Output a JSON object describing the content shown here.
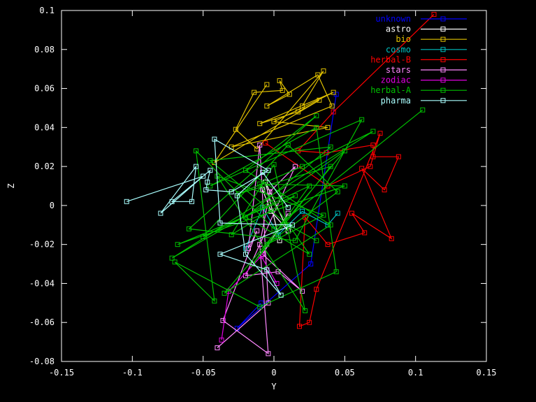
{
  "chart_data": {
    "type": "line",
    "xlabel": "Y",
    "ylabel": "Z",
    "xlim": [
      -0.15,
      0.15
    ],
    "ylim": [
      -0.08,
      0.1
    ],
    "xticks": [
      "-0.15",
      "-0.1",
      "-0.05",
      "0",
      "0.05",
      "0.1",
      "0.15"
    ],
    "yticks": [
      "-0.08",
      "-0.06",
      "-0.04",
      "-0.02",
      "0",
      "0.02",
      "0.04",
      "0.06",
      "0.08",
      "0.1"
    ],
    "legend_position": "top-right",
    "grid": false,
    "series": [
      {
        "name": "unknown",
        "color": "#0000ff",
        "points": [
          [
            0.044,
            0.057
          ],
          [
            0.026,
            -0.03
          ],
          [
            -0.026,
            -0.063
          ],
          [
            -0.009,
            -0.05
          ]
        ]
      },
      {
        "name": "astro",
        "color": "#ffffff",
        "points": [
          [
            -0.008,
            0.008
          ],
          [
            -0.002,
            -0.003
          ],
          [
            0.01,
            -0.013
          ],
          [
            -0.006,
            0.012
          ],
          [
            0.004,
            -0.018
          ]
        ]
      },
      {
        "name": "bio",
        "color": "#e0c000",
        "points": [
          [
            0.02,
            0.051
          ],
          [
            0.035,
            0.069
          ],
          [
            -0.012,
            0.029
          ],
          [
            -0.027,
            0.039
          ],
          [
            -0.014,
            0.058
          ],
          [
            0.006,
            0.059
          ],
          [
            0.004,
            0.064
          ],
          [
            0.011,
            0.057
          ],
          [
            -0.005,
            0.051
          ],
          [
            0.031,
            0.067
          ],
          [
            0.041,
            0.051
          ],
          [
            -0.03,
            0.03
          ],
          [
            0.038,
            0.04
          ],
          [
            0.0,
            0.043
          ],
          [
            0.042,
            0.058
          ],
          [
            -0.01,
            0.042
          ],
          [
            0.017,
            0.048
          ],
          [
            0.032,
            0.054
          ],
          [
            -0.042,
            0.022
          ],
          [
            -0.005,
            0.062
          ]
        ]
      },
      {
        "name": "cosmo",
        "color": "#00c0c0",
        "points": [
          [
            0.045,
            -0.004
          ],
          [
            0.038,
            -0.01
          ],
          [
            0.02,
            -0.003
          ],
          [
            0.003,
            -0.015
          ],
          [
            -0.008,
            -0.001
          ],
          [
            -0.02,
            -0.022
          ]
        ]
      },
      {
        "name": "herbal-B",
        "color": "#ff0000",
        "points": [
          [
            0.113,
            0.098
          ],
          [
            0.042,
            0.048
          ],
          [
            0.017,
            0.028
          ],
          [
            0.037,
            0.027
          ],
          [
            0.07,
            0.031
          ],
          [
            0.07,
            0.025
          ],
          [
            0.088,
            0.025
          ],
          [
            0.078,
            0.008
          ],
          [
            0.062,
            0.019
          ],
          [
            0.083,
            -0.017
          ],
          [
            0.055,
            -0.004
          ],
          [
            0.064,
            -0.014
          ],
          [
            0.038,
            -0.02
          ],
          [
            0.022,
            -0.006
          ],
          [
            0.018,
            -0.062
          ],
          [
            0.025,
            -0.06
          ],
          [
            0.03,
            -0.043
          ],
          [
            0.075,
            0.037
          ],
          [
            0.068,
            0.02
          ],
          [
            0.038,
            0.01
          ],
          [
            -0.006,
            0.032
          ]
        ]
      },
      {
        "name": "stars",
        "color": "#ff88ff",
        "points": [
          [
            -0.04,
            -0.073
          ],
          [
            -0.004,
            -0.05
          ],
          [
            -0.01,
            0.031
          ],
          [
            -0.018,
            -0.022
          ],
          [
            -0.012,
            -0.013
          ],
          [
            -0.036,
            -0.059
          ],
          [
            -0.004,
            -0.076
          ],
          [
            -0.01,
            -0.02
          ],
          [
            -0.003,
            0.007
          ],
          [
            0.015,
            0.02
          ],
          [
            -0.02,
            -0.036
          ],
          [
            0.003,
            -0.034
          ],
          [
            0.02,
            -0.044
          ],
          [
            -0.008,
            -0.025
          ],
          [
            0.01,
            -0.004
          ]
        ]
      },
      {
        "name": "zodiac",
        "color": "#e000e0",
        "points": [
          [
            -0.037,
            -0.069
          ],
          [
            -0.032,
            -0.044
          ],
          [
            -0.009,
            -0.026
          ],
          [
            0.002,
            -0.04
          ]
        ]
      },
      {
        "name": "herbal-A",
        "color": "#00c000",
        "points": [
          [
            0.105,
            0.049
          ],
          [
            0.0,
            -0.012
          ],
          [
            -0.055,
            0.028
          ],
          [
            -0.042,
            -0.049
          ],
          [
            -0.07,
            -0.029
          ],
          [
            -0.01,
            -0.052
          ],
          [
            0.044,
            -0.034
          ],
          [
            0.03,
            0.04
          ],
          [
            -0.045,
            0.01
          ],
          [
            0.062,
            0.044
          ],
          [
            0.015,
            -0.018
          ],
          [
            -0.06,
            -0.012
          ],
          [
            0.03,
            0.046
          ],
          [
            -0.02,
            0.018
          ],
          [
            0.04,
            -0.01
          ],
          [
            -0.035,
            -0.045
          ],
          [
            0.05,
            0.028
          ],
          [
            0.005,
            0.005
          ],
          [
            -0.072,
            -0.027
          ],
          [
            0.07,
            0.038
          ],
          [
            0.02,
            0.02
          ],
          [
            -0.025,
            0.006
          ],
          [
            0.04,
            0.02
          ],
          [
            -0.015,
            -0.03
          ],
          [
            0.025,
            0.01
          ],
          [
            -0.05,
            -0.016
          ],
          [
            0.01,
            0.031
          ],
          [
            0.045,
            0.007
          ],
          [
            -0.005,
            -0.02
          ],
          [
            0.035,
            -0.005
          ],
          [
            -0.04,
            0.015
          ],
          [
            0.022,
            -0.054
          ],
          [
            0.0,
            0.021
          ],
          [
            -0.03,
            -0.015
          ],
          [
            0.015,
            0.005
          ],
          [
            -0.068,
            -0.02
          ],
          [
            0.05,
            0.01
          ],
          [
            -0.01,
            0.011
          ],
          [
            0.025,
            -0.025
          ],
          [
            -0.02,
            -0.006
          ],
          [
            0.04,
            0.03
          ],
          [
            -0.045,
            0.023
          ],
          [
            0.01,
            -0.01
          ],
          [
            0.03,
            -0.018
          ]
        ]
      },
      {
        "name": "pharma",
        "color": "#aaffff",
        "points": [
          [
            -0.104,
            0.002
          ],
          [
            -0.05,
            0.015
          ],
          [
            -0.08,
            -0.004
          ],
          [
            -0.055,
            0.02
          ],
          [
            -0.058,
            0.002
          ],
          [
            -0.072,
            0.002
          ],
          [
            -0.045,
            0.018
          ],
          [
            -0.047,
            0.012
          ],
          [
            -0.048,
            0.008
          ],
          [
            -0.03,
            0.007
          ],
          [
            -0.004,
            0.018
          ],
          [
            -0.042,
            0.034
          ],
          [
            -0.038,
            -0.009
          ],
          [
            0.013,
            -0.01
          ],
          [
            -0.038,
            -0.025
          ],
          [
            -0.005,
            -0.033
          ],
          [
            0.005,
            -0.046
          ],
          [
            -0.02,
            -0.025
          ],
          [
            -0.026,
            0.005
          ],
          [
            -0.008,
            0.017
          ],
          [
            0.01,
            -0.001
          ]
        ]
      }
    ]
  }
}
